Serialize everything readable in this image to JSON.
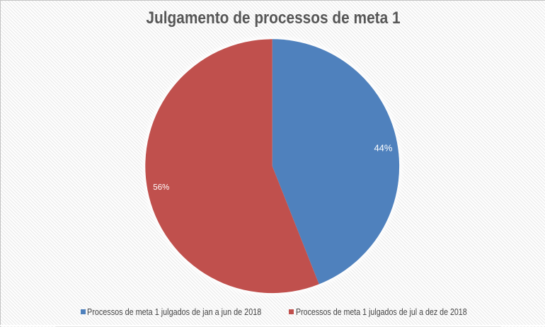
{
  "chart_data": {
    "type": "pie",
    "title": "Julgamento de processos de meta 1",
    "categories": [
      "Processos de meta 1 julgados de jan a jun de 2018",
      "Processos de meta 1 julgados de jul a dez de 2018"
    ],
    "values": [
      44,
      56
    ],
    "data_labels": [
      "44%",
      "56%"
    ],
    "slice_colors": [
      "#4f81bd",
      "#c0504d"
    ],
    "start_angle_deg": 0,
    "direction": "clockwise",
    "legend_position": "bottom",
    "data_label_position": "inside",
    "data_label_color": "#ffffff",
    "background_pattern": "diagonal-stripes"
  },
  "colors": {
    "background": "#ffffff",
    "stripe": "#e9e9e9",
    "title_text": "#575757",
    "legend_text": "#454545",
    "frame_border": "#c3c3c3"
  }
}
